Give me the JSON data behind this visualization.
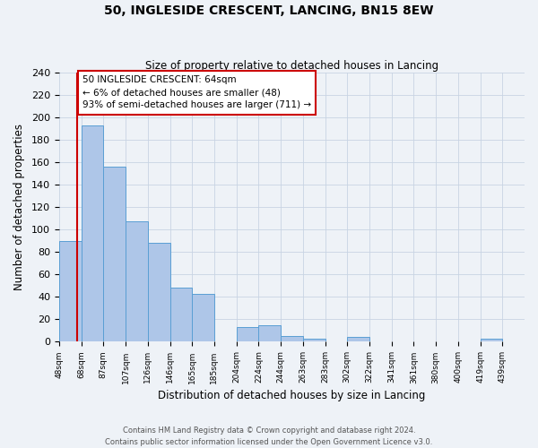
{
  "title": "50, INGLESIDE CRESCENT, LANCING, BN15 8EW",
  "subtitle": "Size of property relative to detached houses in Lancing",
  "xlabel": "Distribution of detached houses by size in Lancing",
  "ylabel": "Number of detached properties",
  "footnote1": "Contains HM Land Registry data © Crown copyright and database right 2024.",
  "footnote2": "Contains public sector information licensed under the Open Government Licence v3.0.",
  "bar_labels": [
    "48sqm",
    "68sqm",
    "87sqm",
    "107sqm",
    "126sqm",
    "146sqm",
    "165sqm",
    "185sqm",
    "204sqm",
    "224sqm",
    "244sqm",
    "263sqm",
    "283sqm",
    "302sqm",
    "322sqm",
    "341sqm",
    "361sqm",
    "380sqm",
    "400sqm",
    "419sqm",
    "439sqm"
  ],
  "bar_heights": [
    90,
    193,
    156,
    107,
    88,
    48,
    43,
    0,
    13,
    15,
    5,
    3,
    0,
    4,
    0,
    0,
    0,
    0,
    0,
    3,
    0
  ],
  "bar_color": "#aec6e8",
  "bar_edgecolor": "#5a9fd4",
  "ylim": [
    0,
    240
  ],
  "yticks": [
    0,
    20,
    40,
    60,
    80,
    100,
    120,
    140,
    160,
    180,
    200,
    220,
    240
  ],
  "marker_color": "#cc0000",
  "annotation_title": "50 INGLESIDE CRESCENT: 64sqm",
  "annotation_line2": "← 6% of detached houses are smaller (48)",
  "annotation_line3": "93% of semi-detached houses are larger (711) →",
  "annotation_box_edgecolor": "#cc0000",
  "background_color": "#eef2f7"
}
